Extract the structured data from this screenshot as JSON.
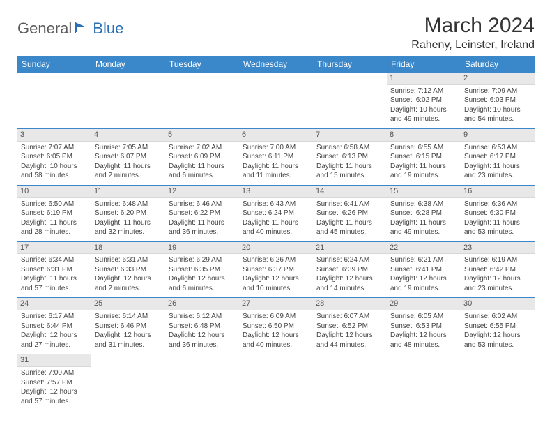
{
  "logo": {
    "part1": "General",
    "part2": "Blue"
  },
  "title": "March 2024",
  "location": "Raheny, Leinster, Ireland",
  "colors": {
    "header_bg": "#3a87c9",
    "header_text": "#ffffff",
    "daynum_bg": "#e8e8e8",
    "row_border": "#3a87c9",
    "logo_gray": "#5a5a5a",
    "logo_blue": "#2a6fb5"
  },
  "day_headers": [
    "Sunday",
    "Monday",
    "Tuesday",
    "Wednesday",
    "Thursday",
    "Friday",
    "Saturday"
  ],
  "weeks": [
    [
      null,
      null,
      null,
      null,
      null,
      {
        "n": "1",
        "sr": "Sunrise: 7:12 AM",
        "ss": "Sunset: 6:02 PM",
        "dl": "Daylight: 10 hours and 49 minutes."
      },
      {
        "n": "2",
        "sr": "Sunrise: 7:09 AM",
        "ss": "Sunset: 6:03 PM",
        "dl": "Daylight: 10 hours and 54 minutes."
      }
    ],
    [
      {
        "n": "3",
        "sr": "Sunrise: 7:07 AM",
        "ss": "Sunset: 6:05 PM",
        "dl": "Daylight: 10 hours and 58 minutes."
      },
      {
        "n": "4",
        "sr": "Sunrise: 7:05 AM",
        "ss": "Sunset: 6:07 PM",
        "dl": "Daylight: 11 hours and 2 minutes."
      },
      {
        "n": "5",
        "sr": "Sunrise: 7:02 AM",
        "ss": "Sunset: 6:09 PM",
        "dl": "Daylight: 11 hours and 6 minutes."
      },
      {
        "n": "6",
        "sr": "Sunrise: 7:00 AM",
        "ss": "Sunset: 6:11 PM",
        "dl": "Daylight: 11 hours and 11 minutes."
      },
      {
        "n": "7",
        "sr": "Sunrise: 6:58 AM",
        "ss": "Sunset: 6:13 PM",
        "dl": "Daylight: 11 hours and 15 minutes."
      },
      {
        "n": "8",
        "sr": "Sunrise: 6:55 AM",
        "ss": "Sunset: 6:15 PM",
        "dl": "Daylight: 11 hours and 19 minutes."
      },
      {
        "n": "9",
        "sr": "Sunrise: 6:53 AM",
        "ss": "Sunset: 6:17 PM",
        "dl": "Daylight: 11 hours and 23 minutes."
      }
    ],
    [
      {
        "n": "10",
        "sr": "Sunrise: 6:50 AM",
        "ss": "Sunset: 6:19 PM",
        "dl": "Daylight: 11 hours and 28 minutes."
      },
      {
        "n": "11",
        "sr": "Sunrise: 6:48 AM",
        "ss": "Sunset: 6:20 PM",
        "dl": "Daylight: 11 hours and 32 minutes."
      },
      {
        "n": "12",
        "sr": "Sunrise: 6:46 AM",
        "ss": "Sunset: 6:22 PM",
        "dl": "Daylight: 11 hours and 36 minutes."
      },
      {
        "n": "13",
        "sr": "Sunrise: 6:43 AM",
        "ss": "Sunset: 6:24 PM",
        "dl": "Daylight: 11 hours and 40 minutes."
      },
      {
        "n": "14",
        "sr": "Sunrise: 6:41 AM",
        "ss": "Sunset: 6:26 PM",
        "dl": "Daylight: 11 hours and 45 minutes."
      },
      {
        "n": "15",
        "sr": "Sunrise: 6:38 AM",
        "ss": "Sunset: 6:28 PM",
        "dl": "Daylight: 11 hours and 49 minutes."
      },
      {
        "n": "16",
        "sr": "Sunrise: 6:36 AM",
        "ss": "Sunset: 6:30 PM",
        "dl": "Daylight: 11 hours and 53 minutes."
      }
    ],
    [
      {
        "n": "17",
        "sr": "Sunrise: 6:34 AM",
        "ss": "Sunset: 6:31 PM",
        "dl": "Daylight: 11 hours and 57 minutes."
      },
      {
        "n": "18",
        "sr": "Sunrise: 6:31 AM",
        "ss": "Sunset: 6:33 PM",
        "dl": "Daylight: 12 hours and 2 minutes."
      },
      {
        "n": "19",
        "sr": "Sunrise: 6:29 AM",
        "ss": "Sunset: 6:35 PM",
        "dl": "Daylight: 12 hours and 6 minutes."
      },
      {
        "n": "20",
        "sr": "Sunrise: 6:26 AM",
        "ss": "Sunset: 6:37 PM",
        "dl": "Daylight: 12 hours and 10 minutes."
      },
      {
        "n": "21",
        "sr": "Sunrise: 6:24 AM",
        "ss": "Sunset: 6:39 PM",
        "dl": "Daylight: 12 hours and 14 minutes."
      },
      {
        "n": "22",
        "sr": "Sunrise: 6:21 AM",
        "ss": "Sunset: 6:41 PM",
        "dl": "Daylight: 12 hours and 19 minutes."
      },
      {
        "n": "23",
        "sr": "Sunrise: 6:19 AM",
        "ss": "Sunset: 6:42 PM",
        "dl": "Daylight: 12 hours and 23 minutes."
      }
    ],
    [
      {
        "n": "24",
        "sr": "Sunrise: 6:17 AM",
        "ss": "Sunset: 6:44 PM",
        "dl": "Daylight: 12 hours and 27 minutes."
      },
      {
        "n": "25",
        "sr": "Sunrise: 6:14 AM",
        "ss": "Sunset: 6:46 PM",
        "dl": "Daylight: 12 hours and 31 minutes."
      },
      {
        "n": "26",
        "sr": "Sunrise: 6:12 AM",
        "ss": "Sunset: 6:48 PM",
        "dl": "Daylight: 12 hours and 36 minutes."
      },
      {
        "n": "27",
        "sr": "Sunrise: 6:09 AM",
        "ss": "Sunset: 6:50 PM",
        "dl": "Daylight: 12 hours and 40 minutes."
      },
      {
        "n": "28",
        "sr": "Sunrise: 6:07 AM",
        "ss": "Sunset: 6:52 PM",
        "dl": "Daylight: 12 hours and 44 minutes."
      },
      {
        "n": "29",
        "sr": "Sunrise: 6:05 AM",
        "ss": "Sunset: 6:53 PM",
        "dl": "Daylight: 12 hours and 48 minutes."
      },
      {
        "n": "30",
        "sr": "Sunrise: 6:02 AM",
        "ss": "Sunset: 6:55 PM",
        "dl": "Daylight: 12 hours and 53 minutes."
      }
    ],
    [
      {
        "n": "31",
        "sr": "Sunrise: 7:00 AM",
        "ss": "Sunset: 7:57 PM",
        "dl": "Daylight: 12 hours and 57 minutes."
      },
      null,
      null,
      null,
      null,
      null,
      null
    ]
  ]
}
